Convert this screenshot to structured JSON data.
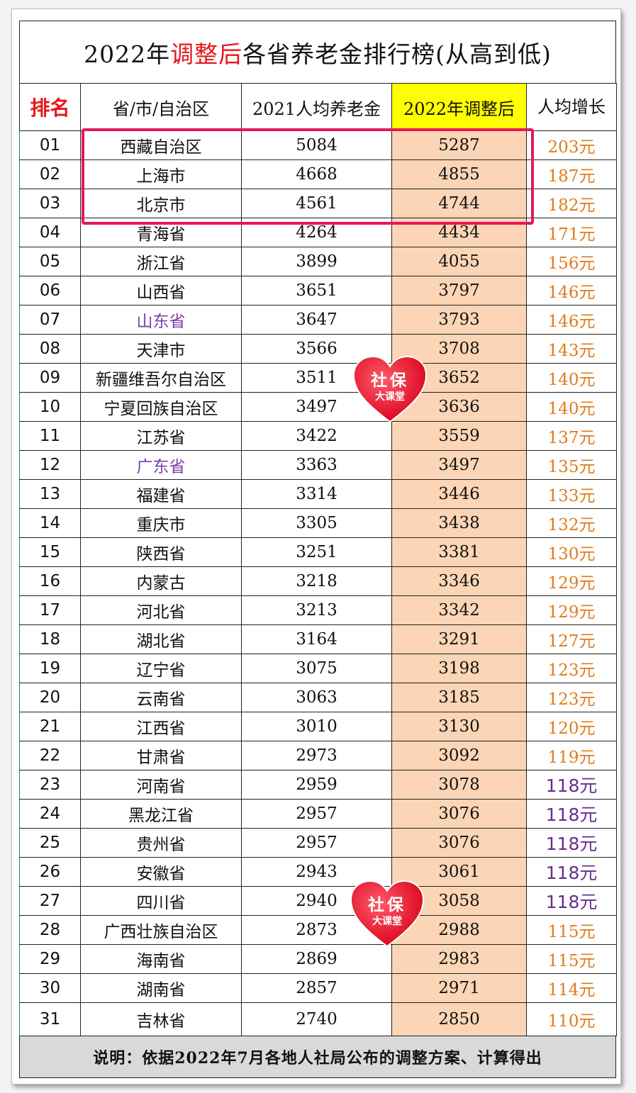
{
  "title": {
    "pre": "2022年",
    "highlight": "调整后",
    "post": "各省养老金排行榜(从高到低)"
  },
  "headers": {
    "rank": "排名",
    "region": "省/市/自治区",
    "avg2021": "2021人均养老金",
    "adj2022": "2022年调整后",
    "growth": "人均增长"
  },
  "rows": [
    {
      "rank": "01",
      "name": "西藏自治区",
      "v2021": "5084",
      "v2022": "5287",
      "growth": "203元"
    },
    {
      "rank": "02",
      "name": "上海市",
      "v2021": "4668",
      "v2022": "4855",
      "growth": "187元"
    },
    {
      "rank": "03",
      "name": "北京市",
      "v2021": "4561",
      "v2022": "4744",
      "growth": "182元"
    },
    {
      "rank": "04",
      "name": "青海省",
      "v2021": "4264",
      "v2022": "4434",
      "growth": "171元"
    },
    {
      "rank": "05",
      "name": "浙江省",
      "v2021": "3899",
      "v2022": "4055",
      "growth": "156元"
    },
    {
      "rank": "06",
      "name": "山西省",
      "v2021": "3651",
      "v2022": "3797",
      "growth": "146元"
    },
    {
      "rank": "07",
      "name": "山东省",
      "v2021": "3647",
      "v2022": "3793",
      "growth": "146元"
    },
    {
      "rank": "08",
      "name": "天津市",
      "v2021": "3566",
      "v2022": "3708",
      "growth": "143元"
    },
    {
      "rank": "09",
      "name": "新疆维吾尔自治区",
      "v2021": "3511",
      "v2022": "3652",
      "growth": "140元"
    },
    {
      "rank": "10",
      "name": "宁夏回族自治区",
      "v2021": "3497",
      "v2022": "3636",
      "growth": "140元"
    },
    {
      "rank": "11",
      "name": "江苏省",
      "v2021": "3422",
      "v2022": "3559",
      "growth": "137元"
    },
    {
      "rank": "12",
      "name": "广东省",
      "v2021": "3363",
      "v2022": "3497",
      "growth": "135元"
    },
    {
      "rank": "13",
      "name": "福建省",
      "v2021": "3314",
      "v2022": "3446",
      "growth": "133元"
    },
    {
      "rank": "14",
      "name": "重庆市",
      "v2021": "3305",
      "v2022": "3438",
      "growth": "132元"
    },
    {
      "rank": "15",
      "name": "陕西省",
      "v2021": "3251",
      "v2022": "3381",
      "growth": "130元"
    },
    {
      "rank": "16",
      "name": "内蒙古",
      "v2021": "3218",
      "v2022": "3346",
      "growth": "129元"
    },
    {
      "rank": "17",
      "name": "河北省",
      "v2021": "3213",
      "v2022": "3342",
      "growth": "129元"
    },
    {
      "rank": "18",
      "name": "湖北省",
      "v2021": "3164",
      "v2022": "3291",
      "growth": "127元"
    },
    {
      "rank": "19",
      "name": "辽宁省",
      "v2021": "3075",
      "v2022": "3198",
      "growth": "123元"
    },
    {
      "rank": "20",
      "name": "云南省",
      "v2021": "3063",
      "v2022": "3185",
      "growth": "123元"
    },
    {
      "rank": "21",
      "name": "江西省",
      "v2021": "3010",
      "v2022": "3130",
      "growth": "120元"
    },
    {
      "rank": "22",
      "name": "甘肃省",
      "v2021": "2973",
      "v2022": "3092",
      "growth": "119元"
    },
    {
      "rank": "23",
      "name": "河南省",
      "v2021": "2959",
      "v2022": "3078",
      "growth": "118元"
    },
    {
      "rank": "24",
      "name": "黑龙江省",
      "v2021": "2957",
      "v2022": "3076",
      "growth": "118元"
    },
    {
      "rank": "25",
      "name": "贵州省",
      "v2021": "2957",
      "v2022": "3076",
      "growth": "118元"
    },
    {
      "rank": "26",
      "name": "安徽省",
      "v2021": "2943",
      "v2022": "3061",
      "growth": "118元"
    },
    {
      "rank": "27",
      "name": "四川省",
      "v2021": "2940",
      "v2022": "3058",
      "growth": "118元"
    },
    {
      "rank": "28",
      "name": "广西壮族自治区",
      "v2021": "2873",
      "v2022": "2988",
      "growth": "115元"
    },
    {
      "rank": "29",
      "name": "海南省",
      "v2021": "2869",
      "v2022": "2983",
      "growth": "115元"
    },
    {
      "rank": "30",
      "name": "湖南省",
      "v2021": "2857",
      "v2022": "2971",
      "growth": "114元"
    },
    {
      "rank": "31",
      "name": "吉林省",
      "v2021": "2740",
      "v2022": "2850",
      "growth": "110元"
    }
  ],
  "note": "说明：依据2022年7月各地人社局公布的调整方案、计算得出",
  "watermark": {
    "line1": "社保",
    "line2": "大课堂"
  },
  "colors": {
    "title_highlight": "#e8151b",
    "header_2022": "#ffff00",
    "col_2022": "#fbd5b5",
    "growth": "#e07b1a",
    "growth_purple": "#6a2d91",
    "name_purple": "#7a3fae",
    "top3_box": "#e5175a"
  }
}
